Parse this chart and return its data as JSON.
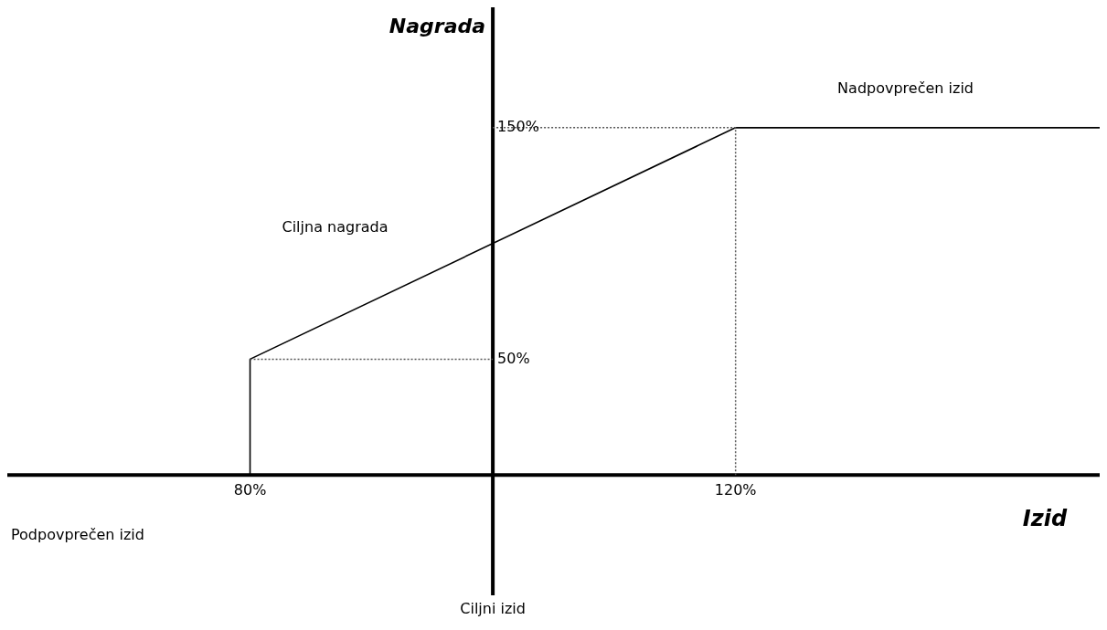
{
  "chart_data": {
    "type": "line",
    "xlabel": "Izid",
    "ylabel": "Nagrada",
    "xlim": [
      60,
      150
    ],
    "ylim": [
      -52,
      202
    ],
    "xticks": [
      {
        "value": 80,
        "label": "80%"
      },
      {
        "value": 120,
        "label": "120%"
      }
    ],
    "yticks": [
      {
        "value": 50,
        "label": "50%"
      },
      {
        "value": 150,
        "label": "150%"
      }
    ],
    "series": [
      {
        "x": [
          60,
          80,
          80,
          120,
          150
        ],
        "values": [
          0,
          0,
          50,
          150,
          150
        ],
        "color": "#000000"
      },
      {
        "x": [
          80,
          100
        ],
        "values": [
          50,
          50
        ],
        "color": "#555555",
        "line_style": "dotted"
      },
      {
        "x": [
          100,
          120,
          120
        ],
        "values": [
          150,
          150,
          0
        ],
        "color": "#555555",
        "line_style": "dotted"
      }
    ],
    "annotations": [
      "Nadpovprečen izid",
      "Ciljna nagrada",
      "Podpovprečen izid"
    ],
    "ref_lines": [
      {
        "axis": "x",
        "value": 100,
        "label": "Ciljni izid",
        "color": "#000000"
      }
    ],
    "grid": false,
    "marker": "none",
    "line_style": "solid"
  }
}
